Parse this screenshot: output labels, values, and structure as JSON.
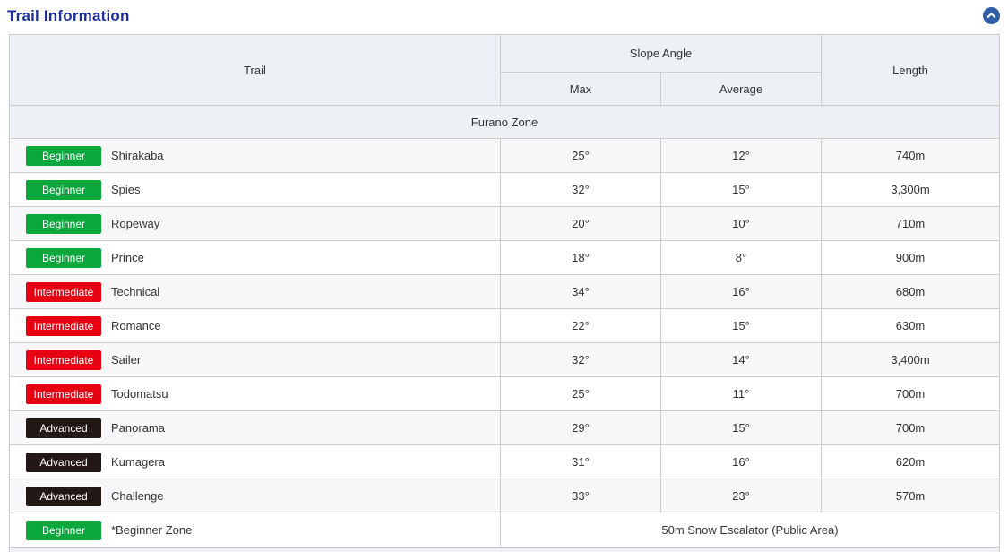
{
  "page": {
    "title": "Trail Information"
  },
  "icons": {
    "scroll_top": "chevron-up-icon"
  },
  "colors": {
    "title_accent": "#1d2f9e",
    "top_button_blue": "#2f5ea7",
    "header_bg": "#edf1f6",
    "stripe_bg": "#f7f7f9",
    "border": "#cccccc",
    "beginner": "#0aa73c",
    "intermediate": "#e60012",
    "advanced": "#231815"
  },
  "table": {
    "headers": {
      "trail": "Trail",
      "slope_angle": "Slope Angle",
      "max": "Max",
      "average": "Average",
      "length": "Length"
    },
    "zone": "Furano Zone",
    "rows": [
      {
        "level": "Beginner",
        "level_key": "beginner",
        "name": "Shirakaba",
        "max": "25°",
        "average": "12°",
        "length": "740m"
      },
      {
        "level": "Beginner",
        "level_key": "beginner",
        "name": "Spies",
        "max": "32°",
        "average": "15°",
        "length": "3,300m"
      },
      {
        "level": "Beginner",
        "level_key": "beginner",
        "name": "Ropeway",
        "max": "20°",
        "average": "10°",
        "length": "710m"
      },
      {
        "level": "Beginner",
        "level_key": "beginner",
        "name": "Prince",
        "max": "18°",
        "average": "8°",
        "length": "900m"
      },
      {
        "level": "Intermediate",
        "level_key": "intermediate",
        "name": "Technical",
        "max": "34°",
        "average": "16°",
        "length": "680m"
      },
      {
        "level": "Intermediate",
        "level_key": "intermediate",
        "name": "Romance",
        "max": "22°",
        "average": "15°",
        "length": "630m"
      },
      {
        "level": "Intermediate",
        "level_key": "intermediate",
        "name": "Sailer",
        "max": "32°",
        "average": "14°",
        "length": "3,400m"
      },
      {
        "level": "Intermediate",
        "level_key": "intermediate",
        "name": "Todomatsu",
        "max": "25°",
        "average": "11°",
        "length": "700m"
      },
      {
        "level": "Advanced",
        "level_key": "advanced",
        "name": "Panorama",
        "max": "29°",
        "average": "15°",
        "length": "700m"
      },
      {
        "level": "Advanced",
        "level_key": "advanced",
        "name": "Kumagera",
        "max": "31°",
        "average": "16°",
        "length": "620m"
      },
      {
        "level": "Advanced",
        "level_key": "advanced",
        "name": "Challenge",
        "max": "33°",
        "average": "23°",
        "length": "570m"
      },
      {
        "level": "Beginner",
        "level_key": "beginner",
        "name": "*Beginner Zone",
        "merged": "50m Snow Escalator (Public Area)"
      }
    ]
  }
}
